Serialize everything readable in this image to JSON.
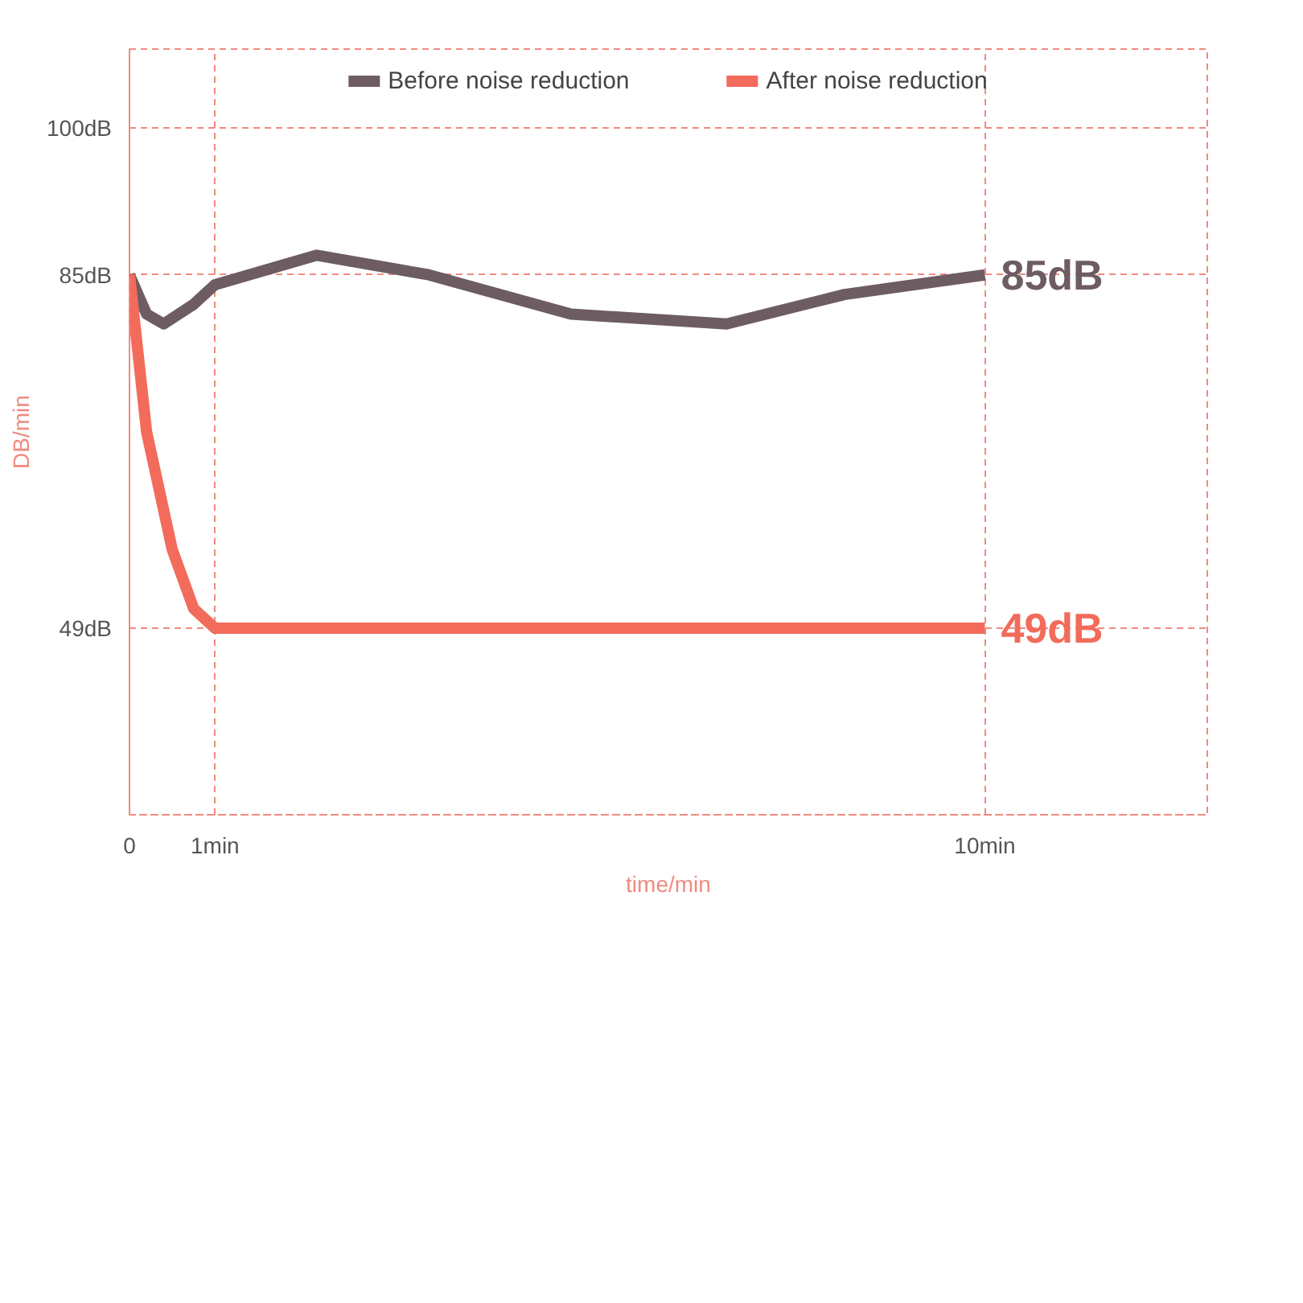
{
  "chart_data": {
    "type": "line",
    "xlabel": "time/min",
    "ylabel": "DB/min",
    "x": [
      0,
      0.2,
      0.4,
      0.75,
      1,
      2.19,
      3.5,
      5.16,
      6.98,
      8.36,
      10
    ],
    "xlim": [
      0,
      12.6
    ],
    "ylim": [
      30,
      108
    ],
    "xticks": [
      {
        "value": 0,
        "label": "0"
      },
      {
        "value": 1,
        "label": "1min"
      },
      {
        "value": 10,
        "label": "10min"
      }
    ],
    "yticks": [
      {
        "value": 49,
        "label": "49dB"
      },
      {
        "value": 85,
        "label": "85dB"
      },
      {
        "value": 100,
        "label": "100dB"
      }
    ],
    "series": [
      {
        "name": "Before noise reduction",
        "color": "#6e5c63",
        "values": [
          85,
          81,
          80,
          82,
          84,
          87,
          85,
          81,
          80,
          83,
          85
        ]
      },
      {
        "name": "After noise reduction",
        "color": "#f26b5b",
        "x": [
          0,
          0.2,
          0.5,
          0.75,
          1,
          10
        ],
        "values": [
          85,
          69,
          57,
          51,
          49,
          49
        ]
      }
    ],
    "annotations": [
      {
        "text": "85dB",
        "x": 10,
        "y": 85
      },
      {
        "text": "49dB",
        "x": 10,
        "y": 49
      }
    ],
    "grid": true,
    "legend": "top",
    "line_style": "solid"
  }
}
